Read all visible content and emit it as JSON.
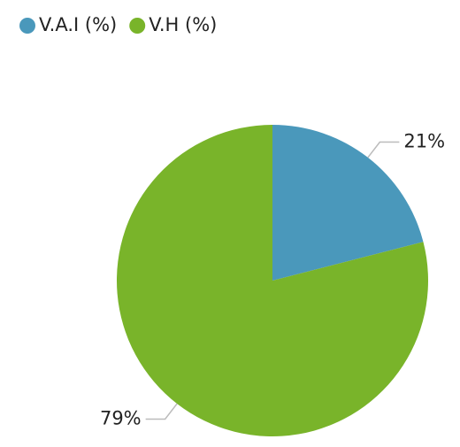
{
  "chart_data": {
    "type": "pie",
    "categories": [
      "V.A.I (%)",
      "V.H (%)"
    ],
    "values": [
      21,
      79
    ],
    "value_labels": [
      "21%",
      "79%"
    ],
    "colors": [
      "#4a98bb",
      "#79b42a"
    ],
    "legend": "top-left"
  }
}
